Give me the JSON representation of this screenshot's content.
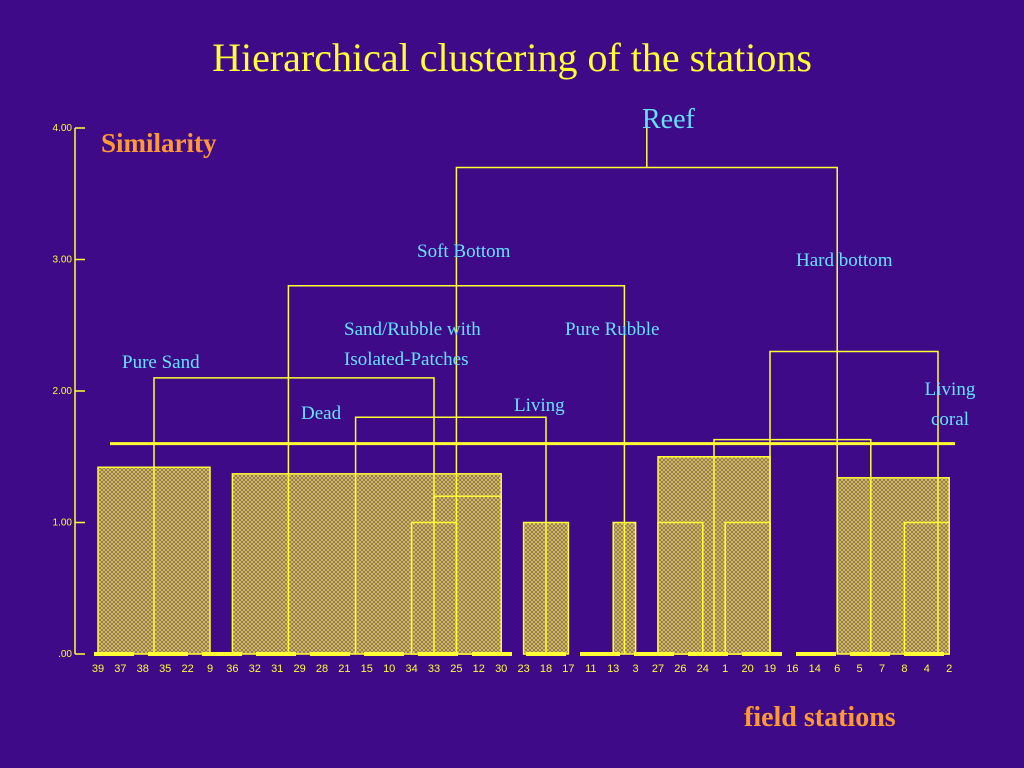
{
  "title": "Hierarchical clustering of the stations",
  "chart_data": {
    "type": "dendrogram",
    "ylabel": "Similarity",
    "xlabel": "field stations",
    "ylim": [
      0,
      4
    ],
    "yticks": [
      "4.00",
      "3.00",
      "2.00",
      "1.00",
      ".00"
    ],
    "cut_level": 1.6,
    "leaves": [
      "39",
      "37",
      "38",
      "35",
      "22",
      "9",
      "36",
      "32",
      "31",
      "29",
      "28",
      "21",
      "15",
      "10",
      "34",
      "33",
      "25",
      "12",
      "30",
      "23",
      "18",
      "17",
      "11",
      "13",
      "3",
      "27",
      "26",
      "24",
      "1",
      "20",
      "19",
      "16",
      "14",
      "6",
      "5",
      "7",
      "8",
      "4",
      "2"
    ],
    "merges": [
      {
        "from": 0,
        "to": 5,
        "height": 1.42
      },
      {
        "from": 6,
        "to": 18,
        "height": 1.37
      },
      {
        "from": 15,
        "to": 18,
        "height": 1.2
      },
      {
        "from": 14,
        "to": 16,
        "height": 1.0
      },
      {
        "from": 19,
        "to": 21,
        "height": 1.0
      },
      {
        "from": 23,
        "to": 24,
        "height": 1.0
      },
      {
        "from": 25,
        "to": 30,
        "height": 1.5
      },
      {
        "from": 25,
        "to": 27,
        "height": 1.0
      },
      {
        "from": 28,
        "to": 30,
        "height": 1.0
      },
      {
        "from": 33,
        "to": 38,
        "height": 1.34
      },
      {
        "from": 36,
        "to": 38,
        "height": 1.0
      }
    ],
    "links": [
      {
        "left_x": 11.5,
        "right_x": 20,
        "height": 1.8
      },
      {
        "left_x": 2.5,
        "right_x": 15,
        "height": 2.1
      },
      {
        "left_x": 8.5,
        "right_x": 23.5,
        "height": 2.8
      },
      {
        "left_x": 27.5,
        "right_x": 34.5,
        "height": 1.63
      },
      {
        "left_x": 30,
        "right_x": 37.5,
        "height": 2.3
      },
      {
        "left_x": 16,
        "right_x": 33,
        "height": 3.7
      },
      {
        "left_x": 24.5,
        "right_x": 24.5,
        "height": 4.0
      }
    ],
    "annotations": [
      "Reef",
      "Soft Bottom",
      "Hard bottom",
      "Sand/Rubble with",
      "Isolated-Patches",
      "Pure Rubble",
      "Pure Sand",
      "Dead",
      "Living",
      "Living",
      "coral"
    ]
  }
}
